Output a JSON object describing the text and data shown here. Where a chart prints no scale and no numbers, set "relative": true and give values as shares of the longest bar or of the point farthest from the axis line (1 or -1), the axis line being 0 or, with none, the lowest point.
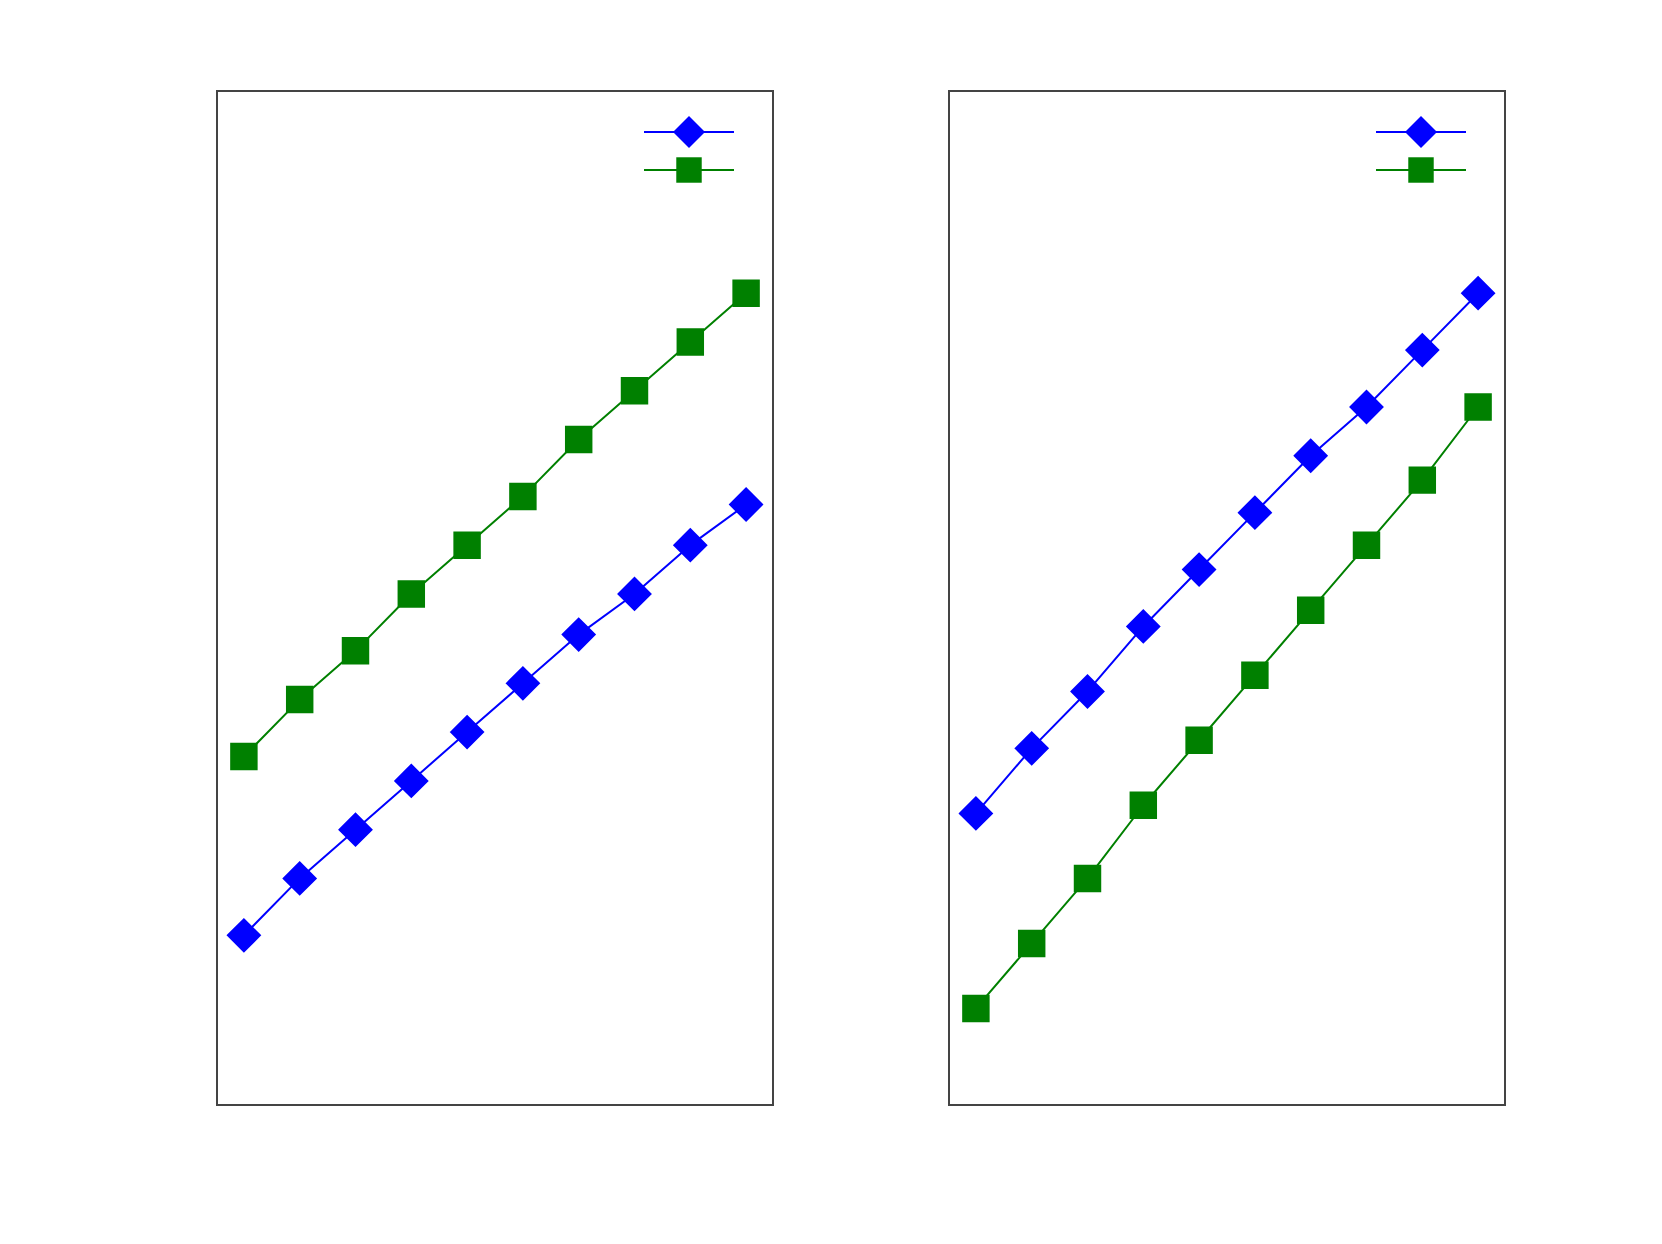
{
  "chart_data": [
    {
      "type": "line",
      "relative": true,
      "categories": [
        null,
        null,
        null,
        null,
        null,
        null,
        null,
        null,
        null,
        null
      ],
      "series": [
        {
          "color": "#0000ff",
          "marker": "diamond",
          "values": [
            0.21,
            0.28,
            0.34,
            0.4,
            0.46,
            0.52,
            0.58,
            0.63,
            0.69,
            0.74
          ]
        },
        {
          "color": "#008000",
          "marker": "square",
          "values": [
            0.43,
            0.5,
            0.56,
            0.63,
            0.69,
            0.75,
            0.82,
            0.88,
            0.94,
            1
          ]
        }
      ]
    },
    {
      "type": "line",
      "relative": true,
      "categories": [
        null,
        null,
        null,
        null,
        null,
        null,
        null,
        null,
        null,
        null
      ],
      "series": [
        {
          "color": "#0000ff",
          "marker": "diamond",
          "values": [
            0.36,
            0.44,
            0.51,
            0.59,
            0.66,
            0.73,
            0.8,
            0.86,
            0.93,
            1
          ]
        },
        {
          "color": "#008000",
          "marker": "square",
          "values": [
            0.12,
            0.2,
            0.28,
            0.37,
            0.45,
            0.53,
            0.61,
            0.69,
            0.77,
            0.86
          ]
        }
      ]
    }
  ]
}
